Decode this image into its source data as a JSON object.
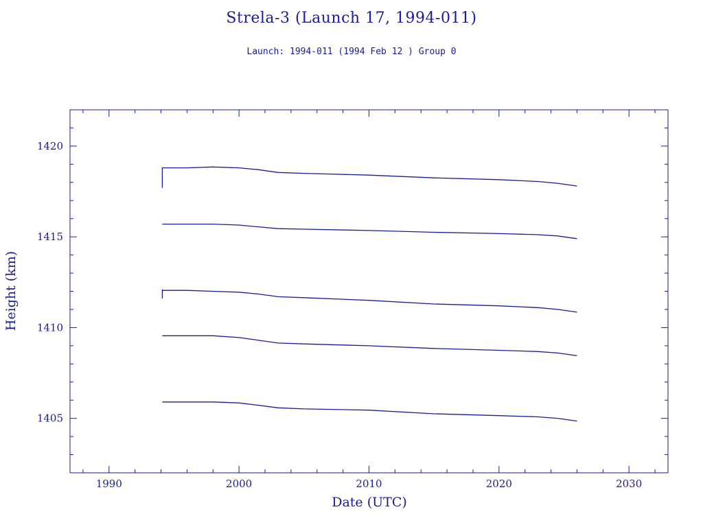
{
  "chart_data": {
    "type": "line",
    "title": "Strela-3 (Launch 17, 1994-011)",
    "subtitle": "Launch: 1994-011  (1994 Feb 12 )  Group 0",
    "xlabel": "Date (UTC)",
    "ylabel": "Height (km)",
    "xlim": [
      1987,
      2033
    ],
    "ylim": [
      1402,
      1422
    ],
    "xticks": [
      1990,
      2000,
      2010,
      2020,
      2030
    ],
    "yticks": [
      1405,
      1410,
      1415,
      1420
    ],
    "grid": false,
    "color": "#1a1a9a",
    "series": [
      {
        "x": [
          1994.1,
          1994.1,
          1994.12,
          1996,
          1998,
          2000,
          2001.5,
          2003,
          2005,
          2010,
          2015,
          2020,
          2023,
          2024.5,
          2026
        ],
        "y": [
          1417.7,
          1418.8,
          1418.8,
          1418.8,
          1418.85,
          1418.8,
          1418.7,
          1418.55,
          1418.5,
          1418.4,
          1418.25,
          1418.15,
          1418.05,
          1417.95,
          1417.8
        ]
      },
      {
        "x": [
          1994.1,
          1996,
          1998,
          2000,
          2001.5,
          2003,
          2005,
          2010,
          2015,
          2020,
          2023,
          2024.5,
          2026
        ],
        "y": [
          1415.7,
          1415.7,
          1415.7,
          1415.65,
          1415.55,
          1415.45,
          1415.42,
          1415.35,
          1415.25,
          1415.18,
          1415.12,
          1415.05,
          1414.9
        ]
      },
      {
        "x": [
          1994.1,
          1994.1,
          1994.12,
          1996,
          1998,
          2000,
          2001.5,
          2003,
          2005,
          2010,
          2015,
          2020,
          2023,
          2024.5,
          2026
        ],
        "y": [
          1411.6,
          1412.1,
          1412.05,
          1412.05,
          1412.0,
          1411.95,
          1411.85,
          1411.7,
          1411.65,
          1411.5,
          1411.3,
          1411.2,
          1411.1,
          1411.0,
          1410.85
        ]
      },
      {
        "x": [
          1994.1,
          1996,
          1998,
          2000,
          2001.5,
          2003,
          2005,
          2010,
          2015,
          2020,
          2023,
          2024.5,
          2026
        ],
        "y": [
          1409.55,
          1409.55,
          1409.55,
          1409.45,
          1409.3,
          1409.15,
          1409.1,
          1409.0,
          1408.85,
          1408.75,
          1408.68,
          1408.6,
          1408.45
        ]
      },
      {
        "x": [
          1994.1,
          1996,
          1998,
          2000,
          2001.5,
          2003,
          2005,
          2010,
          2015,
          2020,
          2023,
          2024.5,
          2026
        ],
        "y": [
          1405.9,
          1405.9,
          1405.9,
          1405.85,
          1405.72,
          1405.58,
          1405.52,
          1405.45,
          1405.25,
          1405.15,
          1405.08,
          1405.0,
          1404.85
        ]
      }
    ]
  }
}
